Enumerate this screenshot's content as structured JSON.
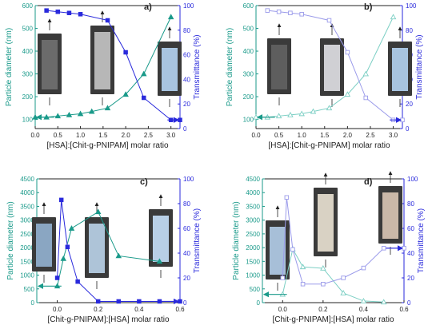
{
  "colors": {
    "teal": "#1a9a8a",
    "blue": "#2a2adc",
    "teal_light": "#7ccfc4",
    "blue_light": "#9b9bea",
    "axis": "#222222"
  },
  "chart_data": [
    {
      "panel": "a)",
      "type": "line",
      "xlabel": "[HSA]:[Chit-g-PNIPAM] molar ratio",
      "ylabel_left": "Particle diameter (nm)",
      "ylabel_right": "Transmittance (%)",
      "xlim": [
        0,
        3.2
      ],
      "ylim_left": [
        60,
        600
      ],
      "ylim_right": [
        0,
        100
      ],
      "xticks": [
        "0.0",
        "0.5",
        "1.0",
        "1.5",
        "2.0",
        "2.5",
        "3.0"
      ],
      "yticks_left": [
        "100",
        "200",
        "300",
        "400",
        "500",
        "600"
      ],
      "yticks_right": [
        "0",
        "20",
        "40",
        "60",
        "80",
        "100"
      ],
      "marker_fill": "solid",
      "series": [
        {
          "x": [
            0.0,
            0.25,
            0.5,
            0.75,
            1.0,
            1.25,
            1.6,
            2.0,
            2.4,
            3.0
          ],
          "y": [
            110,
            110,
            115,
            120,
            125,
            135,
            150,
            210,
            300,
            550
          ],
          "marker": "triangle"
        },
        {
          "x": [
            0.25,
            0.5,
            0.75,
            1.0,
            1.6,
            2.0,
            2.4,
            3.0,
            3.2
          ],
          "y": [
            96,
            95,
            94,
            93,
            88,
            62,
            25,
            7,
            7
          ],
          "marker": "square"
        }
      ],
      "arrows": [
        {
          "to": "left",
          "x": 0.1
        },
        {
          "to": "right",
          "x": 3.1
        }
      ]
    },
    {
      "panel": "b)",
      "type": "line",
      "xlabel": "[HSA]:[Chit-g-PNIPAM] molar ratio",
      "ylabel_left": "Particle diameter (nm)",
      "ylabel_right": "Transmittance (%)",
      "xlim": [
        0,
        3.2
      ],
      "ylim_left": [
        60,
        600
      ],
      "ylim_right": [
        0,
        100
      ],
      "xticks": [
        "0.0",
        "0.5",
        "1.0",
        "1.5",
        "2.0",
        "2.5",
        "3.0"
      ],
      "yticks_left": [
        "100",
        "200",
        "300",
        "400",
        "500",
        "600"
      ],
      "yticks_right": [
        "0",
        "20",
        "40",
        "60",
        "80",
        "100"
      ],
      "marker_fill": "hollow",
      "series": [
        {
          "x": [
            0.0,
            0.25,
            0.5,
            0.75,
            1.0,
            1.25,
            1.6,
            2.0,
            2.4,
            3.0
          ],
          "y": [
            110,
            110,
            115,
            120,
            125,
            135,
            150,
            210,
            300,
            550
          ],
          "marker": "triangle"
        },
        {
          "x": [
            0.25,
            0.5,
            0.75,
            1.0,
            1.6,
            2.0,
            2.4,
            3.0,
            3.2
          ],
          "y": [
            96,
            95,
            94,
            93,
            88,
            62,
            25,
            7,
            7
          ],
          "marker": "square"
        }
      ],
      "arrows": [
        {
          "to": "left",
          "x": 0.1
        },
        {
          "to": "right",
          "x": 3.1
        }
      ]
    },
    {
      "panel": "c)",
      "type": "line",
      "xlabel": "[Chit-g-PNIPAM]:[HSA] molar ratio",
      "ylabel_left": "Particle diameter (nm)",
      "ylabel_right": "Transmittance (%)",
      "xlim": [
        -0.1,
        0.6
      ],
      "ylim_left": [
        0,
        4500
      ],
      "ylim_right": [
        0,
        100
      ],
      "xticks": [
        "0.0",
        "0.2",
        "0.4",
        "0.6"
      ],
      "yticks_left": [
        "0",
        "500",
        "1000",
        "1500",
        "2000",
        "2500",
        "3000",
        "3500",
        "4000",
        "4500"
      ],
      "yticks_right": [
        "0",
        "20",
        "40",
        "60",
        "80",
        "100"
      ],
      "marker_fill": "solid",
      "series": [
        {
          "x": [
            0.0,
            0.03,
            0.07,
            0.2,
            0.3,
            0.5
          ],
          "y": [
            600,
            1600,
            2700,
            3300,
            1700,
            1500
          ],
          "marker": "triangle"
        },
        {
          "x": [
            0.0,
            0.02,
            0.05,
            0.1,
            0.2,
            0.3,
            0.4,
            0.5,
            0.6
          ],
          "y": [
            20,
            83,
            45,
            17,
            1,
            1,
            1,
            1,
            1
          ],
          "marker": "square"
        }
      ],
      "arrows": [
        {
          "to": "left",
          "x": -0.05
        },
        {
          "to": "right",
          "x": 0.55
        }
      ]
    },
    {
      "panel": "d)",
      "type": "line",
      "xlabel": "[Chit-g-PNIPAM]:[HSA] molar ratio",
      "ylabel_left": "Particle diameter (nm)",
      "ylabel_right": "Transmittance (%)",
      "xlim": [
        -0.1,
        0.6
      ],
      "ylim_left": [
        0,
        4500
      ],
      "ylim_right": [
        0,
        100
      ],
      "xticks": [
        "0.0",
        "0.2",
        "0.4",
        "0.6"
      ],
      "yticks_left": [
        "0",
        "500",
        "1000",
        "1500",
        "2000",
        "2500",
        "3000",
        "3500",
        "4000",
        "4500"
      ],
      "yticks_right": [
        "0",
        "20",
        "40",
        "60",
        "80",
        "100"
      ],
      "marker_fill": "hollow",
      "series": [
        {
          "x": [
            0.0,
            0.05,
            0.1,
            0.2,
            0.3,
            0.4,
            0.5
          ],
          "y": [
            300,
            1950,
            1300,
            1250,
            350,
            60,
            20
          ],
          "marker": "triangle"
        },
        {
          "x": [
            0.0,
            0.02,
            0.05,
            0.1,
            0.2,
            0.3,
            0.4,
            0.5,
            0.6
          ],
          "y": [
            20,
            85,
            43,
            15,
            15,
            20,
            28,
            44,
            44
          ],
          "marker": "square"
        }
      ],
      "arrows": [
        {
          "to": "left",
          "x": -0.05
        },
        {
          "to": "right",
          "x": 0.55
        }
      ]
    }
  ]
}
